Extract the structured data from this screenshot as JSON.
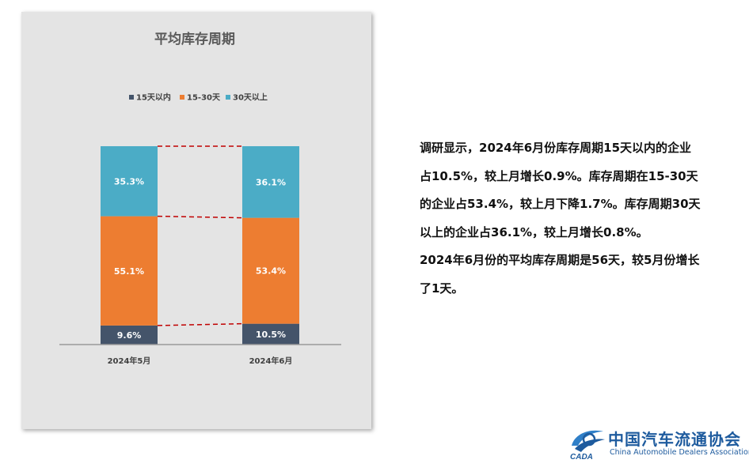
{
  "chart_data": {
    "type": "bar",
    "stacked": true,
    "title": "平均库存周期",
    "categories": [
      "2024年5月",
      "2024年6月"
    ],
    "series": [
      {
        "name": "15天以内",
        "values": [
          9.6,
          10.5
        ],
        "labels": [
          "9.6%",
          "10.5%"
        ],
        "color": "#44546a"
      },
      {
        "name": "15-30天",
        "values": [
          55.1,
          53.4
        ],
        "labels": [
          "55.1%",
          "53.4%"
        ],
        "color": "#ed7d31"
      },
      {
        "name": "30天以上",
        "values": [
          35.3,
          36.1
        ],
        "labels": [
          "35.3%",
          "36.1%"
        ],
        "color": "#4bacc6"
      }
    ],
    "ylim": [
      0,
      100
    ],
    "legend_position": "top",
    "grid": false,
    "connector_color": "#c00000"
  },
  "summary": {
    "lines": [
      "调研显示，2024年6月份库存周期15天以内的企业",
      "占10.5%，较上月增长0.9%。库存周期在15-30天",
      "的企业占53.4%，较上月下降1.7%。库存周期30天",
      "以上的企业占36.1%，较上月增长0.8%。",
      "2024年6月份的平均库存周期是56天，较5月份增长",
      "了1天。"
    ]
  },
  "logo": {
    "mark_text": "CADA",
    "name_cn": "中国汽车流通协会",
    "name_en": "China Automobile Dealers Association",
    "color": "#1e5b9e"
  }
}
